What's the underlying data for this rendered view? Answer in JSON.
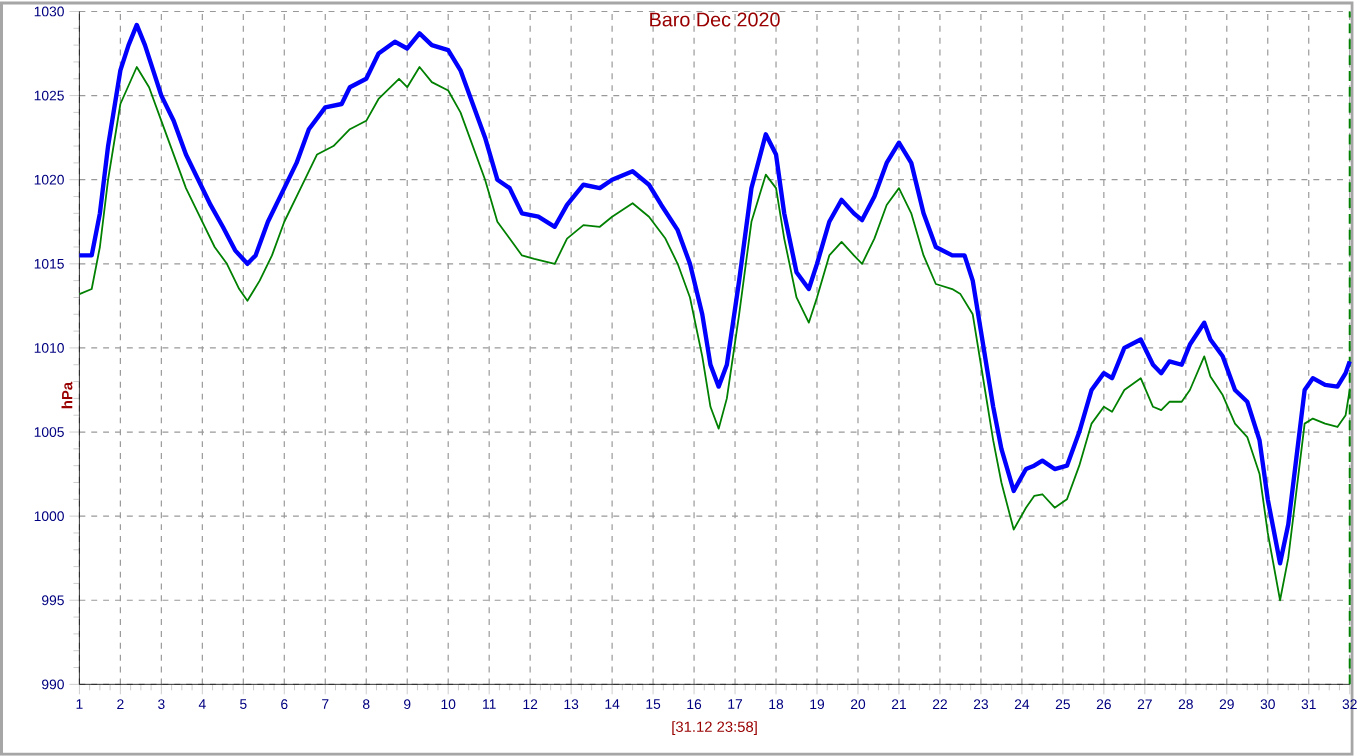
{
  "chart_data": {
    "type": "line",
    "title": "Baro Dec 2020",
    "xlabel": "[31.12 23:58]",
    "ylabel": "hPa",
    "xlim": [
      1,
      32
    ],
    "xticks": [
      1,
      2,
      3,
      4,
      5,
      6,
      7,
      8,
      9,
      10,
      11,
      12,
      13,
      14,
      15,
      16,
      17,
      18,
      19,
      20,
      21,
      22,
      23,
      24,
      25,
      26,
      27,
      28,
      29,
      30,
      31,
      32
    ],
    "ylim": [
      990,
      1030
    ],
    "yticks": [
      990,
      995,
      1000,
      1005,
      1010,
      1015,
      1020,
      1025,
      1030
    ],
    "grid": true,
    "marker": "none",
    "line_style": "solid",
    "ref_lines": [
      {
        "axis": "x",
        "value": 32,
        "color": "#008000",
        "line_style": "dashed"
      }
    ],
    "series": [
      {
        "color": "#0000ff",
        "x": [
          1.0,
          1.3,
          1.5,
          1.7,
          2.0,
          2.2,
          2.4,
          2.6,
          2.8,
          3.0,
          3.3,
          3.6,
          3.9,
          4.2,
          4.5,
          4.8,
          5.1,
          5.3,
          5.6,
          6.0,
          6.3,
          6.6,
          7.0,
          7.4,
          7.6,
          8.0,
          8.3,
          8.7,
          9.0,
          9.3,
          9.6,
          10.0,
          10.3,
          10.6,
          10.9,
          11.2,
          11.5,
          11.8,
          12.2,
          12.6,
          12.9,
          13.3,
          13.7,
          14.0,
          14.5,
          14.9,
          15.2,
          15.6,
          15.9,
          16.2,
          16.4,
          16.6,
          16.8,
          17.1,
          17.4,
          17.75,
          18.0,
          18.2,
          18.5,
          18.8,
          19.0,
          19.3,
          19.6,
          19.9,
          20.1,
          20.4,
          20.7,
          21.0,
          21.3,
          21.6,
          21.9,
          22.3,
          22.6,
          22.8,
          23.0,
          23.3,
          23.5,
          23.8,
          24.1,
          24.3,
          24.5,
          24.8,
          25.1,
          25.4,
          25.7,
          26.0,
          26.2,
          26.5,
          26.9,
          27.2,
          27.4,
          27.6,
          27.9,
          28.1,
          28.45,
          28.6,
          28.9,
          29.2,
          29.5,
          29.8,
          30.0,
          30.3,
          30.5,
          30.7,
          30.9,
          31.1,
          31.4,
          31.7,
          31.9,
          32.0
        ],
        "values": [
          1015.5,
          1015.5,
          1018,
          1022,
          1026.5,
          1028,
          1029.2,
          1028,
          1026.5,
          1025,
          1023.5,
          1021.5,
          1020,
          1018.5,
          1017.2,
          1015.8,
          1015,
          1015.5,
          1017.5,
          1019.5,
          1021,
          1023,
          1024.3,
          1024.5,
          1025.5,
          1026,
          1027.5,
          1028.2,
          1027.8,
          1028.7,
          1028,
          1027.7,
          1026.5,
          1024.5,
          1022.5,
          1020,
          1019.5,
          1018,
          1017.8,
          1017.2,
          1018.5,
          1019.7,
          1019.5,
          1020,
          1020.5,
          1019.7,
          1018.5,
          1017,
          1015,
          1012,
          1009,
          1007.7,
          1009,
          1014,
          1019.5,
          1022.7,
          1021.5,
          1018,
          1014.5,
          1013.5,
          1015,
          1017.5,
          1018.8,
          1018,
          1017.6,
          1019,
          1021,
          1022.2,
          1021,
          1018,
          1016,
          1015.5,
          1015.5,
          1014,
          1011,
          1006.5,
          1004,
          1001.5,
          1002.8,
          1003,
          1003.3,
          1002.8,
          1003,
          1005,
          1007.5,
          1008.5,
          1008.2,
          1010,
          1010.5,
          1009,
          1008.5,
          1009.2,
          1009,
          1010.2,
          1011.5,
          1010.5,
          1009.5,
          1007.5,
          1006.8,
          1004.5,
          1001,
          997.2,
          999.5,
          1003.5,
          1007.5,
          1008.2,
          1007.8,
          1007.7,
          1008.5,
          1009.2
        ]
      },
      {
        "color": "#008000",
        "x": [
          1.0,
          1.3,
          1.5,
          1.7,
          2.0,
          2.4,
          2.7,
          3.0,
          3.3,
          3.6,
          3.9,
          4.3,
          4.6,
          4.9,
          5.1,
          5.4,
          5.7,
          6.0,
          6.4,
          6.8,
          7.2,
          7.6,
          8.0,
          8.3,
          8.8,
          9.0,
          9.3,
          9.6,
          10.0,
          10.3,
          10.6,
          10.9,
          11.2,
          11.5,
          11.8,
          12.1,
          12.6,
          12.9,
          13.3,
          13.7,
          14.0,
          14.5,
          14.9,
          15.3,
          15.6,
          15.9,
          16.2,
          16.4,
          16.6,
          16.8,
          17.1,
          17.4,
          17.75,
          18.0,
          18.2,
          18.5,
          18.8,
          19.0,
          19.3,
          19.6,
          19.9,
          20.1,
          20.4,
          20.7,
          21.0,
          21.3,
          21.6,
          21.9,
          22.3,
          22.5,
          22.8,
          23.0,
          23.3,
          23.5,
          23.8,
          24.1,
          24.3,
          24.5,
          24.8,
          25.1,
          25.4,
          25.7,
          26.0,
          26.2,
          26.5,
          26.9,
          27.2,
          27.4,
          27.6,
          27.9,
          28.1,
          28.45,
          28.6,
          28.9,
          29.2,
          29.5,
          29.8,
          30.0,
          30.3,
          30.5,
          30.7,
          30.9,
          31.1,
          31.4,
          31.7,
          31.9,
          32.0
        ],
        "values": [
          1013.2,
          1013.5,
          1016,
          1020,
          1024.5,
          1026.7,
          1025.5,
          1023.5,
          1021.5,
          1019.5,
          1018,
          1016,
          1015,
          1013.5,
          1012.8,
          1014,
          1015.5,
          1017.5,
          1019.5,
          1021.5,
          1022,
          1023,
          1023.5,
          1024.8,
          1026,
          1025.5,
          1026.7,
          1025.8,
          1025.3,
          1024,
          1022,
          1020,
          1017.5,
          1016.5,
          1015.5,
          1015.3,
          1015,
          1016.5,
          1017.3,
          1017.2,
          1017.8,
          1018.6,
          1017.8,
          1016.5,
          1015,
          1013,
          1009.5,
          1006.5,
          1005.2,
          1007,
          1012,
          1017.5,
          1020.3,
          1019.5,
          1016.5,
          1013,
          1011.5,
          1013,
          1015.5,
          1016.3,
          1015.5,
          1015,
          1016.5,
          1018.5,
          1019.5,
          1018,
          1015.5,
          1013.8,
          1013.5,
          1013.2,
          1012,
          1009,
          1004.5,
          1002,
          999.2,
          1000.5,
          1001.2,
          1001.3,
          1000.5,
          1001,
          1003,
          1005.5,
          1006.5,
          1006.2,
          1007.5,
          1008.2,
          1006.5,
          1006.3,
          1006.8,
          1006.8,
          1007.5,
          1009.5,
          1008.3,
          1007.2,
          1005.5,
          1004.7,
          1002.5,
          999,
          995,
          997.5,
          1001.5,
          1005.5,
          1005.8,
          1005.5,
          1005.3,
          1006,
          1007.5
        ]
      }
    ]
  }
}
